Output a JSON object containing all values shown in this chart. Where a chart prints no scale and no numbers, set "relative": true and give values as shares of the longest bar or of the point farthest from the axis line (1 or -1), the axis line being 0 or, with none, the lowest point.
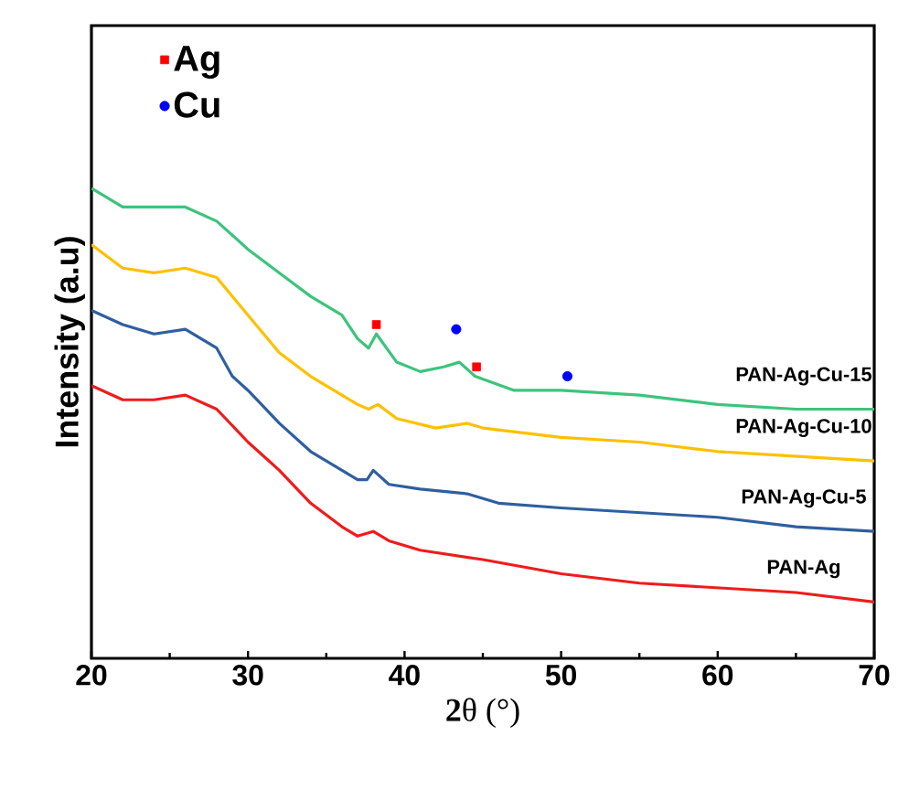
{
  "chart_data": {
    "type": "line",
    "xlabel": "**2**θ (°)",
    "ylabel": "Intensity (a.u)",
    "relative": true,
    "xlim": [
      20,
      70
    ],
    "xticks": [
      20,
      30,
      40,
      50,
      60,
      70
    ],
    "legend": "top left",
    "grid": false,
    "series": [
      {
        "name": "PAN-Ag-Cu-15",
        "color": "#3cc47c",
        "x": [
          20,
          22,
          24,
          26,
          28,
          30,
          32,
          34,
          36,
          37,
          37.7,
          38.2,
          39.5,
          41,
          42.5,
          43.5,
          44.5,
          47,
          50,
          55,
          60,
          65,
          70
        ],
        "values": [
          1.0,
          0.96,
          0.96,
          0.96,
          0.93,
          0.87,
          0.82,
          0.77,
          0.73,
          0.68,
          0.66,
          0.69,
          0.63,
          0.61,
          0.62,
          0.63,
          0.6,
          0.57,
          0.57,
          0.56,
          0.54,
          0.53,
          0.53
        ]
      },
      {
        "name": "PAN-Ag-Cu-10",
        "color": "#ffc000",
        "x": [
          20,
          22,
          24,
          26,
          28,
          30,
          32,
          34,
          36,
          37,
          37.7,
          38.3,
          39.5,
          42,
          44,
          45,
          50,
          55,
          60,
          65,
          70
        ],
        "values": [
          0.88,
          0.83,
          0.82,
          0.83,
          0.81,
          0.73,
          0.65,
          0.6,
          0.56,
          0.54,
          0.53,
          0.54,
          0.51,
          0.49,
          0.5,
          0.49,
          0.47,
          0.46,
          0.44,
          0.43,
          0.42
        ]
      },
      {
        "name": "PAN-Ag-Cu-5",
        "color": "#2e5fa0",
        "x": [
          20,
          22,
          24,
          26,
          28,
          29,
          30,
          32,
          34,
          36,
          37,
          37.6,
          38,
          39,
          41,
          44,
          46,
          50,
          55,
          60,
          65,
          70
        ],
        "values": [
          0.74,
          0.71,
          0.69,
          0.7,
          0.66,
          0.6,
          0.57,
          0.5,
          0.44,
          0.4,
          0.38,
          0.38,
          0.4,
          0.37,
          0.36,
          0.35,
          0.33,
          0.32,
          0.31,
          0.3,
          0.28,
          0.27
        ]
      },
      {
        "name": "PAN-Ag",
        "color": "#ee1c1c",
        "x": [
          20,
          22,
          24,
          26,
          28,
          30,
          32,
          34,
          36,
          37,
          38,
          39,
          41,
          43,
          45,
          50,
          55,
          60,
          65,
          70
        ],
        "values": [
          0.58,
          0.55,
          0.55,
          0.56,
          0.53,
          0.46,
          0.4,
          0.33,
          0.28,
          0.26,
          0.27,
          0.25,
          0.23,
          0.22,
          0.21,
          0.18,
          0.16,
          0.15,
          0.14,
          0.12
        ]
      },
      {
        "name": "Ag",
        "type": "scatter",
        "marker": "square",
        "color": "#ff0000",
        "x": [
          38.2,
          44.6
        ],
        "values": [
          0.71,
          0.62
        ]
      },
      {
        "name": "Cu",
        "type": "scatter",
        "marker": "circle",
        "color": "#0000ff",
        "x": [
          43.3,
          50.4
        ],
        "values": [
          0.7,
          0.6
        ]
      }
    ]
  }
}
